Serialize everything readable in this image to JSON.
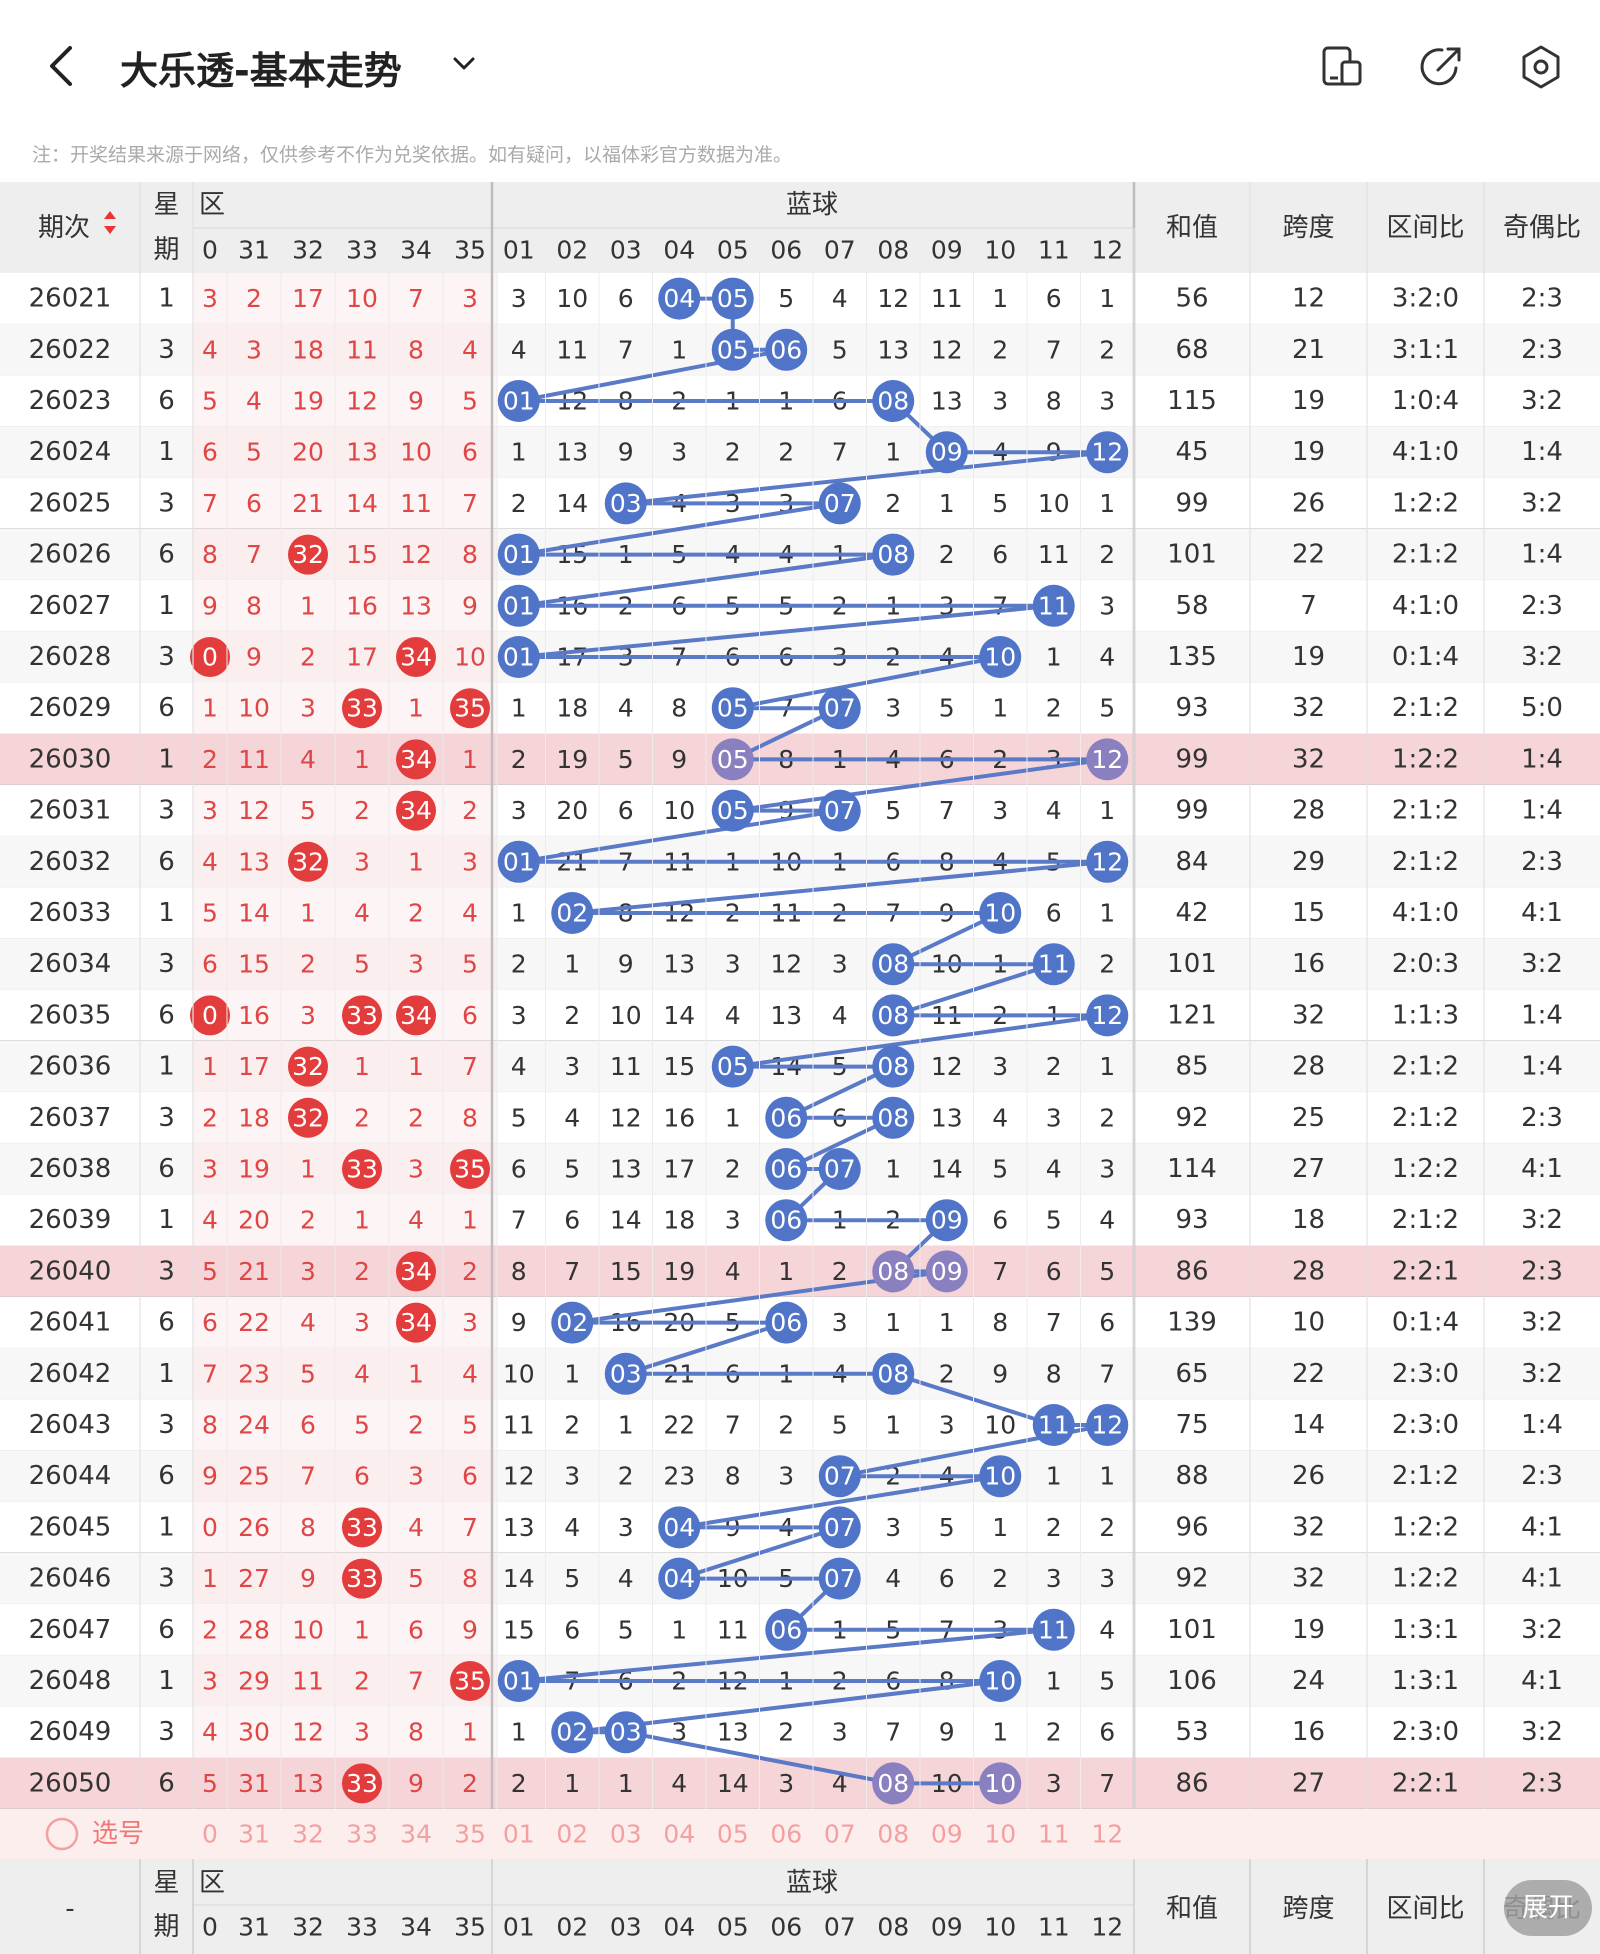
{
  "title": "大乐透-基本走势",
  "note": "注：开奖结果来源于网络，仅供参考不作为兑奖依据。如有疑问，以福体彩官方数据为准。",
  "icons": {
    "back": "chevron-left-icon",
    "dropdown": "chevron-down-icon",
    "i1": "device-icon",
    "i2": "share-icon",
    "i3": "settings-icon"
  },
  "headers": {
    "period": "期次",
    "week": "星期",
    "front_zone": "区",
    "blue": "蓝球",
    "sum": "和值",
    "span": "跨度",
    "zone_ratio": "区间比",
    "odd_even": "奇偶比",
    "front_cols": [
      "0",
      "31",
      "32",
      "33",
      "34",
      "35"
    ],
    "blue_cols": [
      "01",
      "02",
      "03",
      "04",
      "05",
      "06",
      "07",
      "08",
      "09",
      "10",
      "11",
      "12"
    ]
  },
  "select_label": "选号",
  "footer_period": "-",
  "expand": "展开",
  "rows": [
    {
      "p": "26021",
      "w": "1",
      "f": [
        "3",
        "2",
        "17",
        "10",
        "7",
        "3"
      ],
      "fh": [],
      "b": [
        "3",
        "10",
        "6",
        "04",
        "05",
        "5",
        "4",
        "12",
        "11",
        "1",
        "6",
        "1"
      ],
      "bh": [
        3,
        4
      ],
      "s": "56",
      "sp": "12",
      "z": "3:2:0",
      "o": "2:3"
    },
    {
      "p": "26022",
      "w": "3",
      "f": [
        "4",
        "3",
        "18",
        "11",
        "8",
        "4"
      ],
      "fh": [],
      "b": [
        "4",
        "11",
        "7",
        "1",
        "05",
        "06",
        "5",
        "13",
        "12",
        "2",
        "7",
        "2"
      ],
      "bh": [
        4,
        5
      ],
      "s": "68",
      "sp": "21",
      "z": "3:1:1",
      "o": "2:3"
    },
    {
      "p": "26023",
      "w": "6",
      "f": [
        "5",
        "4",
        "19",
        "12",
        "9",
        "5"
      ],
      "fh": [],
      "b": [
        "01",
        "12",
        "8",
        "2",
        "1",
        "1",
        "6",
        "08",
        "13",
        "3",
        "8",
        "3"
      ],
      "bh": [
        0,
        7
      ],
      "s": "115",
      "sp": "19",
      "z": "1:0:4",
      "o": "3:2"
    },
    {
      "p": "26024",
      "w": "1",
      "f": [
        "6",
        "5",
        "20",
        "13",
        "10",
        "6"
      ],
      "fh": [],
      "b": [
        "1",
        "13",
        "9",
        "3",
        "2",
        "2",
        "7",
        "1",
        "09",
        "4",
        "9",
        "12"
      ],
      "bh": [
        8,
        11
      ],
      "s": "45",
      "sp": "19",
      "z": "4:1:0",
      "o": "1:4"
    },
    {
      "p": "26025",
      "w": "3",
      "f": [
        "7",
        "6",
        "21",
        "14",
        "11",
        "7"
      ],
      "fh": [],
      "b": [
        "2",
        "14",
        "03",
        "4",
        "3",
        "3",
        "07",
        "2",
        "1",
        "5",
        "10",
        "1"
      ],
      "bh": [
        2,
        6
      ],
      "s": "99",
      "sp": "26",
      "z": "1:2:2",
      "o": "3:2"
    },
    {
      "p": "26026",
      "w": "6",
      "f": [
        "8",
        "7",
        "32",
        "15",
        "12",
        "8"
      ],
      "fh": [
        2
      ],
      "b": [
        "01",
        "15",
        "1",
        "5",
        "4",
        "4",
        "1",
        "08",
        "2",
        "6",
        "11",
        "2"
      ],
      "bh": [
        0,
        7
      ],
      "s": "101",
      "sp": "22",
      "z": "2:1:2",
      "o": "1:4"
    },
    {
      "p": "26027",
      "w": "1",
      "f": [
        "9",
        "8",
        "1",
        "16",
        "13",
        "9"
      ],
      "fh": [],
      "b": [
        "01",
        "16",
        "2",
        "6",
        "5",
        "5",
        "2",
        "1",
        "3",
        "7",
        "11",
        "3"
      ],
      "bh": [
        0,
        10
      ],
      "s": "58",
      "sp": "7",
      "z": "4:1:0",
      "o": "2:3"
    },
    {
      "p": "26028",
      "w": "3",
      "f": [
        "0",
        "9",
        "2",
        "17",
        "34",
        "10"
      ],
      "fh": [
        0,
        4
      ],
      "b": [
        "01",
        "17",
        "3",
        "7",
        "6",
        "6",
        "3",
        "2",
        "4",
        "10",
        "1",
        "4"
      ],
      "bh": [
        0,
        9
      ],
      "s": "135",
      "sp": "19",
      "z": "0:1:4",
      "o": "3:2"
    },
    {
      "p": "26029",
      "w": "6",
      "f": [
        "1",
        "10",
        "3",
        "33",
        "1",
        "35"
      ],
      "fh": [
        3,
        5
      ],
      "b": [
        "1",
        "18",
        "4",
        "8",
        "05",
        "7",
        "07",
        "3",
        "5",
        "1",
        "2",
        "5"
      ],
      "bh": [
        4,
        6
      ],
      "s": "93",
      "sp": "32",
      "z": "2:1:2",
      "o": "5:0"
    },
    {
      "p": "26030",
      "w": "1",
      "f": [
        "2",
        "11",
        "4",
        "1",
        "34",
        "1"
      ],
      "fh": [
        4
      ],
      "b": [
        "2",
        "19",
        "5",
        "9",
        "05",
        "8",
        "1",
        "4",
        "6",
        "2",
        "3",
        "12"
      ],
      "bh": [
        4,
        11
      ],
      "s": "99",
      "sp": "32",
      "z": "1:2:2",
      "o": "1:4",
      "hl": true
    },
    {
      "p": "26031",
      "w": "3",
      "f": [
        "3",
        "12",
        "5",
        "2",
        "34",
        "2"
      ],
      "fh": [
        4
      ],
      "b": [
        "3",
        "20",
        "6",
        "10",
        "05",
        "9",
        "07",
        "5",
        "7",
        "3",
        "4",
        "1"
      ],
      "bh": [
        4,
        6
      ],
      "s": "99",
      "sp": "28",
      "z": "2:1:2",
      "o": "1:4"
    },
    {
      "p": "26032",
      "w": "6",
      "f": [
        "4",
        "13",
        "32",
        "3",
        "1",
        "3"
      ],
      "fh": [
        2
      ],
      "b": [
        "01",
        "21",
        "7",
        "11",
        "1",
        "10",
        "1",
        "6",
        "8",
        "4",
        "5",
        "12"
      ],
      "bh": [
        0,
        11
      ],
      "s": "84",
      "sp": "29",
      "z": "2:1:2",
      "o": "2:3"
    },
    {
      "p": "26033",
      "w": "1",
      "f": [
        "5",
        "14",
        "1",
        "4",
        "2",
        "4"
      ],
      "fh": [],
      "b": [
        "1",
        "02",
        "8",
        "12",
        "2",
        "11",
        "2",
        "7",
        "9",
        "10",
        "6",
        "1"
      ],
      "bh": [
        1,
        9
      ],
      "s": "42",
      "sp": "15",
      "z": "4:1:0",
      "o": "4:1"
    },
    {
      "p": "26034",
      "w": "3",
      "f": [
        "6",
        "15",
        "2",
        "5",
        "3",
        "5"
      ],
      "fh": [],
      "b": [
        "2",
        "1",
        "9",
        "13",
        "3",
        "12",
        "3",
        "08",
        "10",
        "1",
        "11",
        "2"
      ],
      "bh": [
        7,
        10
      ],
      "s": "101",
      "sp": "16",
      "z": "2:0:3",
      "o": "3:2"
    },
    {
      "p": "26035",
      "w": "6",
      "f": [
        "0",
        "16",
        "3",
        "33",
        "34",
        "6"
      ],
      "fh": [
        0,
        3,
        4
      ],
      "b": [
        "3",
        "2",
        "10",
        "14",
        "4",
        "13",
        "4",
        "08",
        "11",
        "2",
        "1",
        "12"
      ],
      "bh": [
        7,
        11
      ],
      "s": "121",
      "sp": "32",
      "z": "1:1:3",
      "o": "1:4"
    },
    {
      "p": "26036",
      "w": "1",
      "f": [
        "1",
        "17",
        "32",
        "1",
        "1",
        "7"
      ],
      "fh": [
        2
      ],
      "b": [
        "4",
        "3",
        "11",
        "15",
        "05",
        "14",
        "5",
        "08",
        "12",
        "3",
        "2",
        "1"
      ],
      "bh": [
        4,
        7
      ],
      "s": "85",
      "sp": "28",
      "z": "2:1:2",
      "o": "1:4"
    },
    {
      "p": "26037",
      "w": "3",
      "f": [
        "2",
        "18",
        "32",
        "2",
        "2",
        "8"
      ],
      "fh": [
        2
      ],
      "b": [
        "5",
        "4",
        "12",
        "16",
        "1",
        "06",
        "6",
        "08",
        "13",
        "4",
        "3",
        "2"
      ],
      "bh": [
        5,
        7
      ],
      "s": "92",
      "sp": "25",
      "z": "2:1:2",
      "o": "2:3"
    },
    {
      "p": "26038",
      "w": "6",
      "f": [
        "3",
        "19",
        "1",
        "33",
        "3",
        "35"
      ],
      "fh": [
        3,
        5
      ],
      "b": [
        "6",
        "5",
        "13",
        "17",
        "2",
        "06",
        "07",
        "1",
        "14",
        "5",
        "4",
        "3"
      ],
      "bh": [
        5,
        6
      ],
      "s": "114",
      "sp": "27",
      "z": "1:2:2",
      "o": "4:1"
    },
    {
      "p": "26039",
      "w": "1",
      "f": [
        "4",
        "20",
        "2",
        "1",
        "4",
        "1"
      ],
      "fh": [],
      "b": [
        "7",
        "6",
        "14",
        "18",
        "3",
        "06",
        "1",
        "2",
        "09",
        "6",
        "5",
        "4"
      ],
      "bh": [
        5,
        8
      ],
      "s": "93",
      "sp": "18",
      "z": "2:1:2",
      "o": "3:2"
    },
    {
      "p": "26040",
      "w": "3",
      "f": [
        "5",
        "21",
        "3",
        "2",
        "34",
        "2"
      ],
      "fh": [
        4
      ],
      "b": [
        "8",
        "7",
        "15",
        "19",
        "4",
        "1",
        "2",
        "08",
        "09",
        "7",
        "6",
        "5"
      ],
      "bh": [
        7,
        8
      ],
      "s": "86",
      "sp": "28",
      "z": "2:2:1",
      "o": "2:3",
      "hl": true
    },
    {
      "p": "26041",
      "w": "6",
      "f": [
        "6",
        "22",
        "4",
        "3",
        "34",
        "3"
      ],
      "fh": [
        4
      ],
      "b": [
        "9",
        "02",
        "16",
        "20",
        "5",
        "06",
        "3",
        "1",
        "1",
        "8",
        "7",
        "6"
      ],
      "bh": [
        1,
        5
      ],
      "s": "139",
      "sp": "10",
      "z": "0:1:4",
      "o": "3:2"
    },
    {
      "p": "26042",
      "w": "1",
      "f": [
        "7",
        "23",
        "5",
        "4",
        "1",
        "4"
      ],
      "fh": [],
      "b": [
        "10",
        "1",
        "03",
        "21",
        "6",
        "1",
        "4",
        "08",
        "2",
        "9",
        "8",
        "7"
      ],
      "bh": [
        2,
        7
      ],
      "s": "65",
      "sp": "22",
      "z": "2:3:0",
      "o": "3:2"
    },
    {
      "p": "26043",
      "w": "3",
      "f": [
        "8",
        "24",
        "6",
        "5",
        "2",
        "5"
      ],
      "fh": [],
      "b": [
        "11",
        "2",
        "1",
        "22",
        "7",
        "2",
        "5",
        "1",
        "3",
        "10",
        "11",
        "12"
      ],
      "bh": [
        10,
        11
      ],
      "s": "75",
      "sp": "14",
      "z": "2:3:0",
      "o": "1:4"
    },
    {
      "p": "26044",
      "w": "6",
      "f": [
        "9",
        "25",
        "7",
        "6",
        "3",
        "6"
      ],
      "fh": [],
      "b": [
        "12",
        "3",
        "2",
        "23",
        "8",
        "3",
        "07",
        "2",
        "4",
        "10",
        "1",
        "1"
      ],
      "bh": [
        6,
        9
      ],
      "s": "88",
      "sp": "26",
      "z": "2:1:2",
      "o": "2:3"
    },
    {
      "p": "26045",
      "w": "1",
      "f": [
        "0",
        "26",
        "8",
        "33",
        "4",
        "7"
      ],
      "fh": [
        3
      ],
      "b": [
        "13",
        "4",
        "3",
        "04",
        "9",
        "4",
        "07",
        "3",
        "5",
        "1",
        "2",
        "2"
      ],
      "bh": [
        3,
        6
      ],
      "s": "96",
      "sp": "32",
      "z": "1:2:2",
      "o": "4:1"
    },
    {
      "p": "26046",
      "w": "3",
      "f": [
        "1",
        "27",
        "9",
        "33",
        "5",
        "8"
      ],
      "fh": [
        3
      ],
      "b": [
        "14",
        "5",
        "4",
        "04",
        "10",
        "5",
        "07",
        "4",
        "6",
        "2",
        "3",
        "3"
      ],
      "bh": [
        3,
        6
      ],
      "s": "92",
      "sp": "32",
      "z": "1:2:2",
      "o": "4:1"
    },
    {
      "p": "26047",
      "w": "6",
      "f": [
        "2",
        "28",
        "10",
        "1",
        "6",
        "9"
      ],
      "fh": [],
      "b": [
        "15",
        "6",
        "5",
        "1",
        "11",
        "06",
        "1",
        "5",
        "7",
        "3",
        "11",
        "4"
      ],
      "bh": [
        5,
        10
      ],
      "s": "101",
      "sp": "19",
      "z": "1:3:1",
      "o": "3:2"
    },
    {
      "p": "26048",
      "w": "1",
      "f": [
        "3",
        "29",
        "11",
        "2",
        "7",
        "35"
      ],
      "fh": [
        5
      ],
      "b": [
        "01",
        "7",
        "6",
        "2",
        "12",
        "1",
        "2",
        "6",
        "8",
        "10",
        "1",
        "5"
      ],
      "bh": [
        0,
        9
      ],
      "s": "106",
      "sp": "24",
      "z": "1:3:1",
      "o": "4:1"
    },
    {
      "p": "26049",
      "w": "3",
      "f": [
        "4",
        "30",
        "12",
        "3",
        "8",
        "1"
      ],
      "fh": [],
      "b": [
        "1",
        "02",
        "03",
        "3",
        "13",
        "2",
        "3",
        "7",
        "9",
        "1",
        "2",
        "6"
      ],
      "bh": [
        1,
        2
      ],
      "s": "53",
      "sp": "16",
      "z": "2:3:0",
      "o": "3:2"
    },
    {
      "p": "26050",
      "w": "6",
      "f": [
        "5",
        "31",
        "13",
        "33",
        "9",
        "2"
      ],
      "fh": [
        3
      ],
      "b": [
        "2",
        "1",
        "1",
        "4",
        "14",
        "3",
        "4",
        "08",
        "10",
        "10",
        "3",
        "7"
      ],
      "bh": [
        7,
        9
      ],
      "s": "86",
      "sp": "27",
      "z": "2:2:1",
      "o": "2:3",
      "hl": true
    }
  ]
}
